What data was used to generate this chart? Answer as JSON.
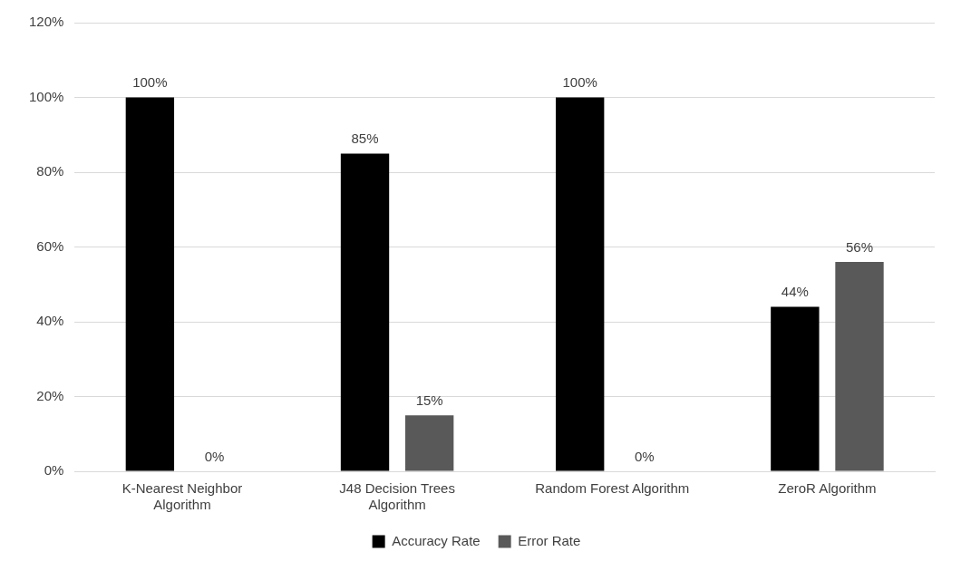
{
  "chart_data": {
    "type": "bar",
    "categories": [
      "K-Nearest Neighbor Algorithm",
      "J48 Decision Trees Algorithm",
      "Random Forest Algorithm",
      "ZeroR Algorithm"
    ],
    "series": [
      {
        "name": "Accuracy Rate",
        "color": "#000000",
        "values": [
          100,
          85,
          100,
          44
        ]
      },
      {
        "name": "Error Rate",
        "color": "#595959",
        "values": [
          0,
          15,
          0,
          56
        ]
      }
    ],
    "ylim": [
      0,
      120
    ],
    "yticks": [
      {
        "value": 0,
        "label": "0%"
      },
      {
        "value": 20,
        "label": "20%"
      },
      {
        "value": 40,
        "label": "40%"
      },
      {
        "value": 60,
        "label": "60%"
      },
      {
        "value": 80,
        "label": "80%"
      },
      {
        "value": 100,
        "label": "100%"
      },
      {
        "value": 120,
        "label": "120%"
      }
    ],
    "value_labels": [
      [
        "100%",
        "85%",
        "100%",
        "44%"
      ],
      [
        "0%",
        "15%",
        "0%",
        "56%"
      ]
    ],
    "grid": "y",
    "legend": "bottom"
  }
}
